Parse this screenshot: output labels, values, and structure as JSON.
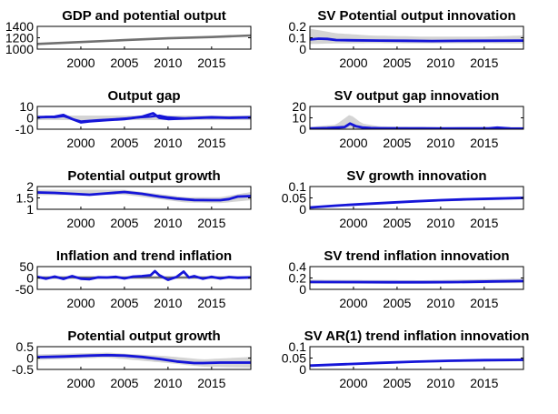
{
  "figure": {
    "x_ticks": [
      2000,
      2005,
      2010,
      2015
    ],
    "x_range": [
      1995,
      2019.5
    ],
    "colors": {
      "estimate": "#1515d8",
      "band": "#d4d4d4",
      "observed": "#707070",
      "axis": "#000000"
    }
  },
  "chart_data": [
    {
      "type": "line",
      "title": "GDP and potential output",
      "ylim": [
        1000,
        1400
      ],
      "yticks": [
        1000,
        1200,
        1400
      ],
      "yticklabels": [
        "1000",
        "1200",
        "1400"
      ],
      "series": [
        {
          "x": [
            1995,
            2000,
            2005,
            2010,
            2015,
            2019.5
          ],
          "values": [
            1092,
            1125,
            1158,
            1190,
            1213,
            1240
          ]
        }
      ],
      "band": {
        "x": [
          1995,
          2019.5
        ],
        "lower": [
          1084,
          1232
        ],
        "upper": [
          1100,
          1248
        ]
      }
    },
    {
      "type": "line",
      "title": "SV Potential output innovation",
      "ylim": [
        0,
        0.2
      ],
      "yticks": [
        0,
        0.1,
        0.2
      ],
      "yticklabels": [
        "0",
        "0.1",
        "0.2"
      ],
      "series": [
        {
          "x": [
            1995,
            1996,
            1997,
            1998,
            2000,
            2003,
            2006,
            2009,
            2012,
            2015,
            2019.5
          ],
          "values": [
            0.085,
            0.092,
            0.09,
            0.08,
            0.078,
            0.075,
            0.074,
            0.071,
            0.073,
            0.074,
            0.075
          ]
        }
      ],
      "band": {
        "x": [
          1995,
          1998,
          2002,
          2008,
          2015,
          2019.5
        ],
        "lower": [
          0.045,
          0.05,
          0.052,
          0.05,
          0.052,
          0.05
        ],
        "upper": [
          0.18,
          0.14,
          0.12,
          0.11,
          0.11,
          0.12
        ]
      }
    },
    {
      "type": "line",
      "title": "Output gap",
      "ylim": [
        -10,
        10
      ],
      "yticks": [
        -10,
        0,
        10
      ],
      "yticklabels": [
        "-10",
        "0",
        "10"
      ],
      "series": [
        {
          "x": [
            1995,
            1996,
            1997,
            1998,
            1999,
            2000,
            2002,
            2004,
            2006,
            2008,
            2009,
            2010,
            2012,
            2014,
            2016,
            2018,
            2019.5
          ],
          "values": [
            0,
            1,
            0.5,
            1.5,
            -1,
            -3,
            -2,
            -1,
            0,
            1,
            2,
            0.5,
            -0.5,
            0,
            0,
            0,
            0
          ]
        },
        {
          "x": [
            1995,
            1997,
            1998,
            1999,
            2000,
            2001,
            2003,
            2005,
            2007,
            2008.3,
            2009,
            2010,
            2012,
            2015,
            2017,
            2019.5
          ],
          "values": [
            0.5,
            1,
            2.5,
            -1,
            -4,
            -3,
            -2,
            -1,
            1,
            4,
            0,
            -1,
            -0.5,
            0.5,
            0,
            0.5
          ]
        }
      ],
      "band": {
        "x": [
          1995,
          2019.5
        ],
        "lower": [
          -2,
          -2
        ],
        "upper": [
          2,
          2
        ]
      }
    },
    {
      "type": "line",
      "title": "SV output gap innovation",
      "ylim": [
        0,
        20
      ],
      "yticks": [
        0,
        10,
        20
      ],
      "yticklabels": [
        "0",
        "10",
        "20"
      ],
      "series": [
        {
          "x": [
            1995,
            1997,
            1998,
            1999,
            1999.6,
            2000.3,
            2001,
            2002,
            2003,
            2005,
            2008,
            2010,
            2013,
            2015.5,
            2016.5,
            2018,
            2019.5
          ],
          "values": [
            0.6,
            1,
            1.4,
            1.9,
            5,
            2.6,
            1.5,
            1,
            0.8,
            0.7,
            0.7,
            0.6,
            0.7,
            0.7,
            1.4,
            0.6,
            0.5
          ]
        }
      ],
      "band": {
        "x": [
          1995,
          1998,
          1999.6,
          2001,
          2003,
          2010,
          2019.5
        ],
        "lower": [
          0.2,
          0.3,
          0.6,
          0.3,
          0.2,
          0.2,
          0.2
        ],
        "upper": [
          2,
          4,
          13,
          5,
          2.5,
          2,
          2
        ]
      }
    },
    {
      "type": "line",
      "title": "Potential output growth",
      "ylim": [
        1,
        2
      ],
      "yticks": [
        1,
        1.5,
        2
      ],
      "yticklabels": [
        "1",
        "1.5",
        "2"
      ],
      "series": [
        {
          "x": [
            1995,
            1997,
            1999,
            2001,
            2003,
            2005,
            2007,
            2009,
            2011,
            2013,
            2015,
            2016,
            2017,
            2018,
            2019.5
          ],
          "values": [
            1.74,
            1.72,
            1.68,
            1.64,
            1.7,
            1.76,
            1.68,
            1.56,
            1.47,
            1.41,
            1.4,
            1.4,
            1.45,
            1.56,
            1.58
          ]
        }
      ],
      "band": {
        "x": [
          1995,
          2005,
          2012,
          2016,
          2019.5
        ],
        "lower": [
          1.62,
          1.64,
          1.3,
          1.27,
          1.4
        ],
        "upper": [
          1.86,
          1.86,
          1.53,
          1.53,
          1.76
        ]
      }
    },
    {
      "type": "line",
      "title": "SV growth innovation",
      "ylim": [
        0,
        0.1
      ],
      "yticks": [
        0,
        0.05,
        0.1
      ],
      "yticklabels": [
        "0",
        "0.05",
        "0.1"
      ],
      "series": [
        {
          "x": [
            1995,
            1998,
            2001,
            2004,
            2007,
            2010,
            2013,
            2016,
            2019.5
          ],
          "values": [
            0.008,
            0.016,
            0.023,
            0.029,
            0.035,
            0.04,
            0.044,
            0.047,
            0.05
          ]
        }
      ],
      "band": {
        "x": [
          1995,
          2007,
          2019.5
        ],
        "lower": [
          0.005,
          0.031,
          0.044
        ],
        "upper": [
          0.011,
          0.039,
          0.057
        ]
      }
    },
    {
      "type": "line",
      "title": "Inflation and trend inflation",
      "ylim": [
        -50,
        50
      ],
      "yticks": [
        -50,
        0,
        50
      ],
      "yticklabels": [
        "-50",
        "0",
        "50"
      ],
      "series": [
        {
          "x": [
            1995,
            2000,
            2005,
            2010,
            2015,
            2019.5
          ],
          "values": [
            2,
            2,
            2,
            2,
            2,
            2
          ]
        },
        {
          "x": [
            1995,
            1996,
            1997,
            1998,
            1999,
            2000,
            2001,
            2002,
            2003,
            2004,
            2005,
            2006,
            2007,
            2008,
            2008.5,
            2009,
            2010,
            2011,
            2011.8,
            2012.4,
            2013,
            2014,
            2015,
            2016,
            2017,
            2018,
            2019.5
          ],
          "values": [
            5,
            -3,
            6,
            -4,
            8,
            -3,
            -5,
            3,
            2,
            5,
            -2,
            6,
            8,
            12,
            30,
            12,
            -8,
            5,
            28,
            2,
            8,
            -3,
            5,
            -2,
            4,
            1,
            3
          ]
        }
      ],
      "band": {
        "x": [
          1995,
          2019.5
        ],
        "lower": [
          -4,
          -4
        ],
        "upper": [
          8,
          8
        ]
      }
    },
    {
      "type": "line",
      "title": "SV trend inflation innovation",
      "ylim": [
        0,
        0.4
      ],
      "yticks": [
        0,
        0.2,
        0.4
      ],
      "yticklabels": [
        "0",
        "0.2",
        "0.4"
      ],
      "series": [
        {
          "x": [
            1995,
            2000,
            2004,
            2008,
            2012,
            2016,
            2019.5
          ],
          "values": [
            0.13,
            0.128,
            0.125,
            0.125,
            0.128,
            0.14,
            0.145
          ]
        }
      ],
      "band": {
        "x": [
          1995,
          2008,
          2019.5
        ],
        "lower": [
          0.1,
          0.1,
          0.11
        ],
        "upper": [
          0.17,
          0.16,
          0.19
        ]
      }
    },
    {
      "type": "line",
      "title": "Potential output growth",
      "ylim": [
        -0.5,
        0.5
      ],
      "yticks": [
        -0.5,
        0,
        0.5
      ],
      "yticklabels": [
        "-0.5",
        "0",
        "0.5"
      ],
      "series": [
        {
          "x": [
            1995,
            1998,
            2001,
            2003,
            2005,
            2007,
            2009,
            2011,
            2013,
            2014,
            2016,
            2019.5
          ],
          "values": [
            0.04,
            0.07,
            0.11,
            0.13,
            0.11,
            0.05,
            -0.04,
            -0.15,
            -0.22,
            -0.22,
            -0.2,
            -0.2
          ]
        }
      ],
      "band": {
        "x": [
          1995,
          2003,
          2010,
          2014,
          2019.5
        ],
        "lower": [
          -0.08,
          0.02,
          -0.22,
          -0.38,
          -0.42
        ],
        "upper": [
          0.16,
          0.24,
          0.08,
          -0.06,
          0.05
        ]
      }
    },
    {
      "type": "line",
      "title": "SV   AR(1) trend inflation innovation",
      "ylim": [
        0,
        0.1
      ],
      "yticks": [
        0,
        0.05,
        0.1
      ],
      "yticklabels": [
        "0",
        "0.05",
        "0.1"
      ],
      "series": [
        {
          "x": [
            1995,
            1999,
            2003,
            2007,
            2011,
            2015,
            2019.5
          ],
          "values": [
            0.017,
            0.023,
            0.029,
            0.034,
            0.038,
            0.041,
            0.042
          ]
        }
      ],
      "band": {
        "x": [
          1995,
          2007,
          2019.5
        ],
        "lower": [
          0.014,
          0.03,
          0.036
        ],
        "upper": [
          0.02,
          0.038,
          0.049
        ]
      }
    }
  ]
}
